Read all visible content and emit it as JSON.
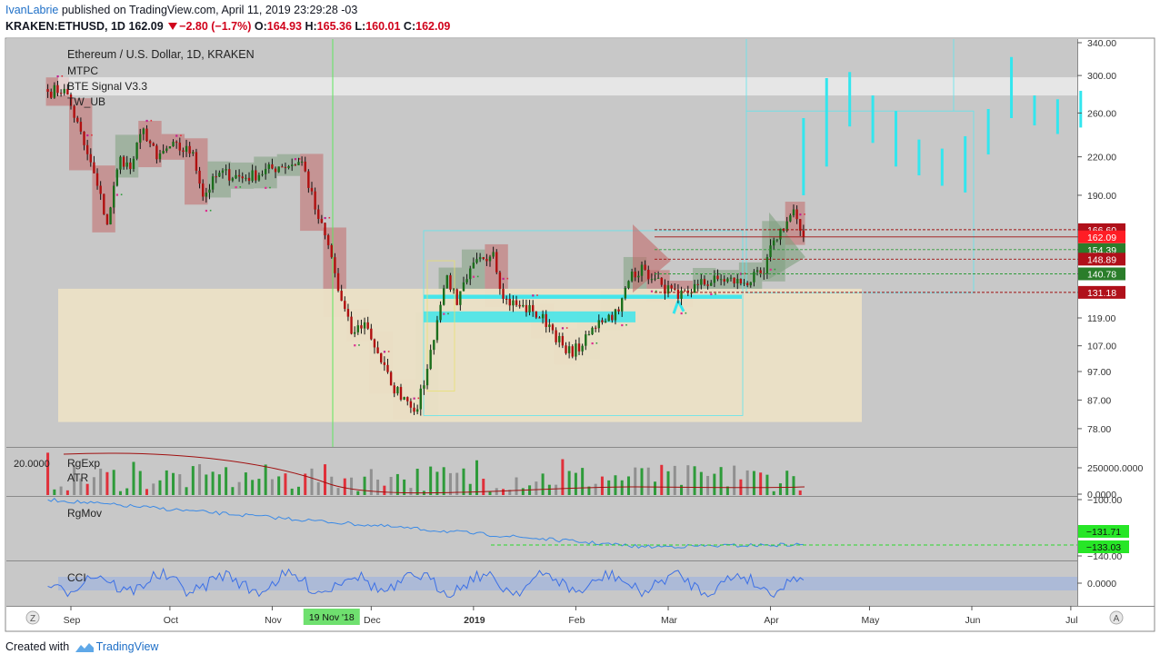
{
  "header": {
    "author": "IvanLabrie",
    "published": "published on TradingView.com, April 11, 2019 23:29:28 -03",
    "symbol": "KRAKEN:ETHUSD, 1D",
    "last": "162.09",
    "change": "−2.80 (−1.7%)",
    "o_label": "O:",
    "o_value": "164.93",
    "h_label": "H:",
    "h_value": "165.36",
    "l_label": "L:",
    "l_value": "160.01",
    "c_label": "C:",
    "c_value": "162.09"
  },
  "footer": {
    "created_with": "Created with",
    "brand": "TradingView"
  },
  "main_pane": {
    "title": "Ethereum / U.S. Dollar, 1D, KRAKEN",
    "indicators": [
      "MTPC",
      "BTE Signal V3.3",
      "TW_UB"
    ]
  },
  "volume_pane": {
    "left_value": "20.0000",
    "indicators": [
      "RgExp",
      "ATR"
    ]
  },
  "rgmov_pane": {
    "indicators": [
      "RgMov"
    ]
  },
  "cci_pane": {
    "indicators": [
      "CCI"
    ]
  },
  "time_axis": {
    "labels": [
      "Sep",
      "Oct",
      "Nov",
      "Dec",
      "2019",
      "Feb",
      "Mar",
      "Apr",
      "May",
      "Jun",
      "Jul"
    ],
    "highlight": "19 Nov '18",
    "left_button": "Z",
    "right_button": "A"
  },
  "colors": {
    "up": "#2e9b3a",
    "down": "#e0303a",
    "cyan": "#33e6ee",
    "pane_bg": "#c8c8c8",
    "zone": "#ece2c6",
    "label_red": "#b0101a",
    "label_green": "#2a7d2a"
  },
  "chart_data": [
    {
      "type": "candlestick",
      "title": "Ethereum / U.S. Dollar, 1D, KRAKEN",
      "yscale": "log",
      "ylim": [
        72,
        345
      ],
      "yticks": [
        "340.00",
        "300.00",
        "260.00",
        "220.00",
        "190.00",
        "166.60",
        "162.09",
        "154.39",
        "148.89",
        "140.78",
        "131.18",
        "119.00",
        "107.00",
        "97.00",
        "87.00",
        "78.00"
      ],
      "price_labels": [
        {
          "value": "166.60",
          "style": "red"
        },
        {
          "value": "162.09",
          "style": "bright-red"
        },
        {
          "value": "154.39",
          "style": "green"
        },
        {
          "value": "148.89",
          "style": "red"
        },
        {
          "value": "140.78",
          "style": "green"
        },
        {
          "value": "131.18",
          "style": "red"
        }
      ],
      "anchors": [
        {
          "date": "2018-08-25",
          "close": 282
        },
        {
          "date": "2018-08-30",
          "close": 285
        },
        {
          "date": "2018-09-05",
          "close": 230
        },
        {
          "date": "2018-09-09",
          "close": 197
        },
        {
          "date": "2018-09-12",
          "close": 170
        },
        {
          "date": "2018-09-16",
          "close": 220
        },
        {
          "date": "2018-09-19",
          "close": 210
        },
        {
          "date": "2018-09-23",
          "close": 245
        },
        {
          "date": "2018-09-27",
          "close": 218
        },
        {
          "date": "2018-10-01",
          "close": 229
        },
        {
          "date": "2018-10-08",
          "close": 224
        },
        {
          "date": "2018-10-11",
          "close": 189
        },
        {
          "date": "2018-10-16",
          "close": 207
        },
        {
          "date": "2018-10-24",
          "close": 203
        },
        {
          "date": "2018-11-03",
          "close": 212
        },
        {
          "date": "2018-11-10",
          "close": 216
        },
        {
          "date": "2018-11-14",
          "close": 180
        },
        {
          "date": "2018-11-19",
          "close": 150
        },
        {
          "date": "2018-11-21",
          "close": 132
        },
        {
          "date": "2018-11-25",
          "close": 112
        },
        {
          "date": "2018-11-29",
          "close": 117
        },
        {
          "date": "2018-12-03",
          "close": 104
        },
        {
          "date": "2018-12-07",
          "close": 92
        },
        {
          "date": "2018-12-11",
          "close": 88
        },
        {
          "date": "2018-12-15",
          "close": 84
        },
        {
          "date": "2018-12-18",
          "close": 98
        },
        {
          "date": "2018-12-21",
          "close": 118
        },
        {
          "date": "2018-12-24",
          "close": 140
        },
        {
          "date": "2018-12-27",
          "close": 125
        },
        {
          "date": "2018-12-30",
          "close": 138
        },
        {
          "date": "2019-01-03",
          "close": 150
        },
        {
          "date": "2019-01-07",
          "close": 153
        },
        {
          "date": "2019-01-10",
          "close": 128
        },
        {
          "date": "2019-01-14",
          "close": 125
        },
        {
          "date": "2019-01-19",
          "close": 122
        },
        {
          "date": "2019-01-24",
          "close": 116
        },
        {
          "date": "2019-01-29",
          "close": 104
        },
        {
          "date": "2019-02-03",
          "close": 107
        },
        {
          "date": "2019-02-08",
          "close": 118
        },
        {
          "date": "2019-02-14",
          "close": 122
        },
        {
          "date": "2019-02-18",
          "close": 142
        },
        {
          "date": "2019-02-22",
          "close": 143
        },
        {
          "date": "2019-02-24",
          "close": 138
        },
        {
          "date": "2019-02-27",
          "close": 135
        },
        {
          "date": "2019-03-04",
          "close": 128
        },
        {
          "date": "2019-03-10",
          "close": 135
        },
        {
          "date": "2019-03-17",
          "close": 138
        },
        {
          "date": "2019-03-24",
          "close": 136
        },
        {
          "date": "2019-03-30",
          "close": 141
        },
        {
          "date": "2019-04-02",
          "close": 160
        },
        {
          "date": "2019-04-06",
          "close": 172
        },
        {
          "date": "2019-04-08",
          "close": 180
        },
        {
          "date": "2019-04-10",
          "close": 166
        },
        {
          "date": "2019-04-11",
          "close": 162.09
        }
      ],
      "projection_bars": [
        {
          "date": "2019-04-11",
          "low": 190,
          "high": 255
        },
        {
          "date": "2019-04-18",
          "low": 212,
          "high": 297
        },
        {
          "date": "2019-04-25",
          "low": 247,
          "high": 304
        },
        {
          "date": "2019-05-02",
          "low": 232,
          "high": 278
        },
        {
          "date": "2019-05-09",
          "low": 212,
          "high": 262
        },
        {
          "date": "2019-05-16",
          "low": 205,
          "high": 235
        },
        {
          "date": "2019-05-23",
          "low": 197,
          "high": 227
        },
        {
          "date": "2019-05-30",
          "low": 192,
          "high": 238
        },
        {
          "date": "2019-06-06",
          "low": 222,
          "high": 264
        },
        {
          "date": "2019-06-13",
          "low": 255,
          "high": 322
        },
        {
          "date": "2019-06-20",
          "low": 248,
          "high": 278
        },
        {
          "date": "2019-06-27",
          "low": 240,
          "high": 274
        },
        {
          "date": "2019-07-04",
          "low": 246,
          "high": 283
        }
      ]
    },
    {
      "type": "bar",
      "title": "RgExp / ATR",
      "yticks": [
        "250000.0000",
        "0.0000"
      ],
      "ylim": [
        0,
        300000
      ]
    },
    {
      "type": "line",
      "title": "RgMov",
      "yticks": [
        "−100.00",
        "−140.00"
      ],
      "ylim": [
        -145,
        -98
      ],
      "price_labels": [
        {
          "value": "−131.71"
        },
        {
          "value": "−133.03"
        }
      ]
    },
    {
      "type": "line",
      "title": "CCI",
      "yticks": [
        "0.0000"
      ],
      "ylim": [
        -250,
        250
      ]
    }
  ]
}
